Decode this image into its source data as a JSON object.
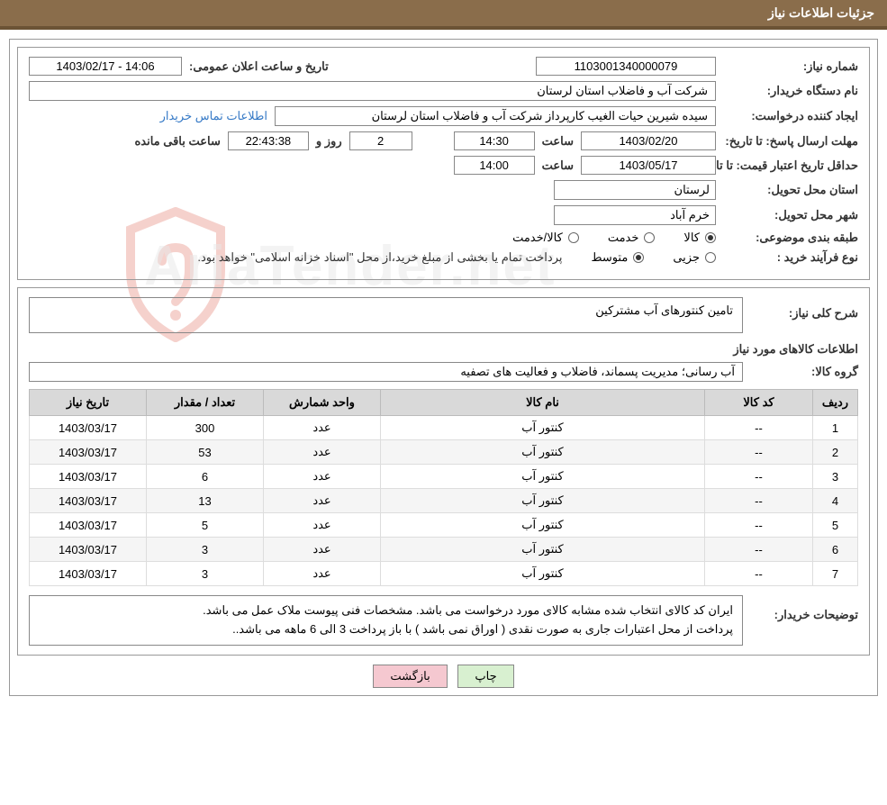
{
  "header": {
    "title": "جزئیات اطلاعات نیاز"
  },
  "fields": {
    "need_number_label": "شماره نیاز:",
    "need_number": "1103001340000079",
    "announce_datetime_label": "تاریخ و ساعت اعلان عمومی:",
    "announce_datetime": "14:06 - 1403/02/17",
    "buyer_org_label": "نام دستگاه خریدار:",
    "buyer_org": "شرکت آب و فاضلاب استان لرستان",
    "request_creator_label": "ایجاد کننده درخواست:",
    "request_creator": "سیده شیرین حیات الغیب کارپرداز شرکت آب و فاضلاب استان لرستان",
    "contact_link": "اطلاعات تماس خریدار",
    "deadline_label": "مهلت ارسال پاسخ: تا تاریخ:",
    "deadline_date": "1403/02/20",
    "time_label": "ساعت",
    "deadline_time": "14:30",
    "days_remaining": "2",
    "days_and_label": "روز و",
    "hours_remaining": "22:43:38",
    "remaining_label": "ساعت باقی مانده",
    "price_validity_label": "حداقل تاریخ اعتبار قیمت: تا تاریخ:",
    "price_validity_date": "1403/05/17",
    "price_validity_time": "14:00",
    "delivery_province_label": "استان محل تحویل:",
    "delivery_province": "لرستان",
    "delivery_city_label": "شهر محل تحویل:",
    "delivery_city": "خرم آباد",
    "category_label": "طبقه بندی موضوعی:",
    "category_options": {
      "goods": "کالا",
      "service": "خدمت",
      "goods_service": "کالا/خدمت"
    },
    "purchase_type_label": "نوع فرآیند خرید :",
    "purchase_options": {
      "partial": "جزیی",
      "medium": "متوسط"
    },
    "purchase_note": "پرداخت تمام یا بخشی از مبلغ خرید،از محل \"اسناد خزانه اسلامی\" خواهد بود.",
    "need_desc_label": "شرح کلی نیاز:",
    "need_desc": "تامین کنتورهای آب مشترکین",
    "items_title": "اطلاعات کالاهای مورد نیاز",
    "goods_group_label": "گروه کالا:",
    "goods_group": "آب رسانی؛ مدیریت پسماند، فاضلاب و فعالیت های تصفیه",
    "buyer_notes_label": "توضیحات خریدار:",
    "buyer_notes_line1": "ایران کد کالای انتخاب شده مشابه کالای مورد درخواست می باشد. مشخصات فنی پیوست ملاک عمل می باشد.",
    "buyer_notes_line2": "پرداخت از محل اعتبارات جاری به صورت نقدی ( اوراق نمی باشد ) با باز پرداخت 3 الی 6 ماهه می باشد.."
  },
  "table": {
    "headers": {
      "row": "ردیف",
      "code": "کد کالا",
      "name": "نام کالا",
      "unit": "واحد شمارش",
      "qty": "تعداد / مقدار",
      "date": "تاریخ نیاز"
    },
    "rows": [
      {
        "n": "1",
        "code": "--",
        "name": "کنتور آب",
        "unit": "عدد",
        "qty": "300",
        "date": "1403/03/17"
      },
      {
        "n": "2",
        "code": "--",
        "name": "کنتور آب",
        "unit": "عدد",
        "qty": "53",
        "date": "1403/03/17"
      },
      {
        "n": "3",
        "code": "--",
        "name": "کنتور آب",
        "unit": "عدد",
        "qty": "6",
        "date": "1403/03/17"
      },
      {
        "n": "4",
        "code": "--",
        "name": "کنتور آب",
        "unit": "عدد",
        "qty": "13",
        "date": "1403/03/17"
      },
      {
        "n": "5",
        "code": "--",
        "name": "کنتور آب",
        "unit": "عدد",
        "qty": "5",
        "date": "1403/03/17"
      },
      {
        "n": "6",
        "code": "--",
        "name": "کنتور آب",
        "unit": "عدد",
        "qty": "3",
        "date": "1403/03/17"
      },
      {
        "n": "7",
        "code": "--",
        "name": "کنتور آب",
        "unit": "عدد",
        "qty": "3",
        "date": "1403/03/17"
      }
    ]
  },
  "buttons": {
    "print": "چاپ",
    "back": "بازگشت"
  },
  "watermark": {
    "text": "AriaTender.net",
    "shield_color": "#d84a3a"
  },
  "styling": {
    "header_bg": "#8a6d4b",
    "header_border": "#6b5335",
    "border_color": "#999999",
    "table_header_bg": "#d9d9d9",
    "row_even_bg": "#f5f5f5",
    "link_color": "#3579c6",
    "btn_print_bg": "#d8f0d0",
    "btn_back_bg": "#f5c8d0",
    "font_family": "Tahoma",
    "base_font_size": 13
  }
}
